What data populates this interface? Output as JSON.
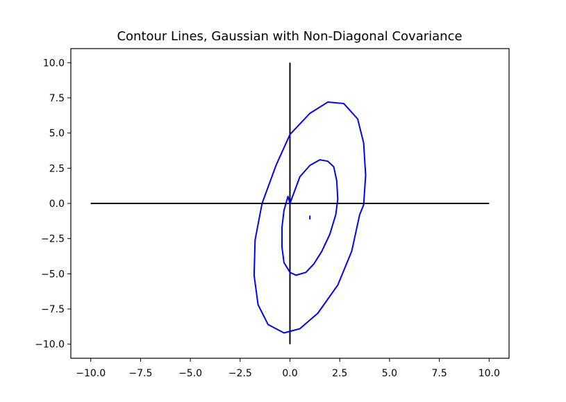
{
  "chart_data": {
    "type": "line",
    "title": "Contour Lines, Gaussian with Non-Diagonal Covariance",
    "xlabel": "",
    "ylabel": "",
    "xlim": [
      -11,
      11
    ],
    "ylim": [
      -11,
      11
    ],
    "xticks": [
      -10,
      -7.5,
      -5,
      -2.5,
      0,
      2.5,
      5,
      7.5,
      10
    ],
    "xtick_labels": [
      "−10.0",
      "−7.5",
      "−5.0",
      "−2.5",
      "0.0",
      "2.5",
      "5.0",
      "7.5",
      "10.0"
    ],
    "yticks": [
      10,
      7.5,
      5,
      2.5,
      0,
      -2.5,
      -5,
      -7.5,
      -10
    ],
    "ytick_labels": [
      "10.0",
      "7.5",
      "5.0",
      "2.5",
      "0.0",
      "−2.5",
      "−5.0",
      "−7.5",
      "−10.0"
    ],
    "grid": false,
    "axis_lines": [
      {
        "x": [
          -10,
          10
        ],
        "y": [
          0,
          0
        ],
        "color": "#000000"
      },
      {
        "x": [
          0,
          0
        ],
        "y": [
          -10,
          10
        ],
        "color": "#000000"
      }
    ],
    "series": [
      {
        "color": "#0000ff",
        "x": [
          1.0,
          1.0
        ],
        "y": [
          -1.1,
          -0.9
        ]
      },
      {
        "color": "#0000ff",
        "x": [
          0.0,
          0.5,
          1.0,
          1.5,
          1.9,
          2.2,
          2.35,
          2.4,
          2.3,
          2.0,
          1.6,
          1.2,
          0.8,
          0.3,
          0.0,
          -0.3,
          -0.4,
          -0.4,
          -0.3,
          -0.1,
          0.0
        ],
        "y": [
          0.0,
          1.9,
          2.7,
          3.1,
          3.0,
          2.6,
          1.6,
          0.3,
          -0.8,
          -2.2,
          -3.4,
          -4.3,
          -4.9,
          -5.1,
          -4.9,
          -4.2,
          -3.1,
          -1.7,
          -0.5,
          0.5,
          0.0
        ]
      },
      {
        "color": "#0000ff",
        "x": [
          0.0,
          1.0,
          1.9,
          2.7,
          3.4,
          3.7,
          3.8,
          3.7,
          3.5,
          3.1,
          2.4,
          1.4,
          0.5,
          -0.3,
          -1.1,
          -1.6,
          -1.8,
          -1.75,
          -1.4,
          -0.7,
          0.0
        ],
        "y": [
          4.9,
          6.4,
          7.2,
          7.1,
          6.0,
          4.3,
          2.0,
          -0.1,
          -0.8,
          -3.4,
          -5.8,
          -7.8,
          -8.9,
          -9.2,
          -8.6,
          -7.2,
          -5.1,
          -2.6,
          0.0,
          2.7,
          4.9
        ]
      }
    ]
  }
}
